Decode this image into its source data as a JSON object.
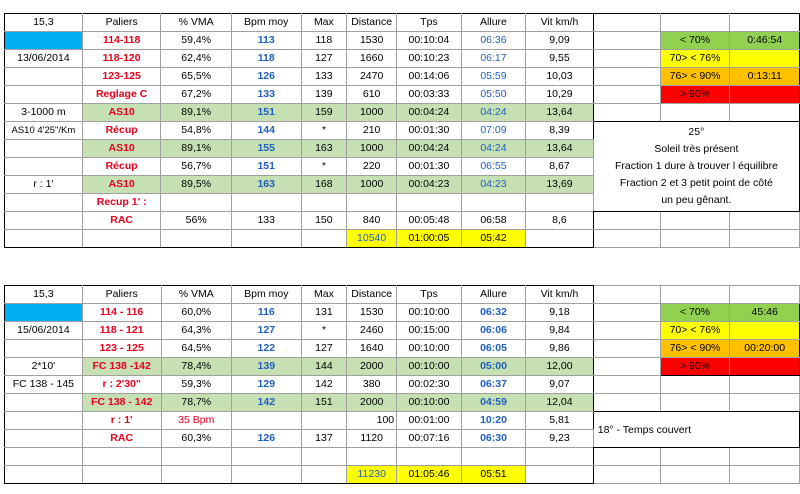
{
  "table1": {
    "corner": "15,3",
    "headers": [
      "Paliers",
      "% VMA",
      "Bpm moy",
      "Max",
      "Distance",
      "Tps",
      "Allure",
      "Vit km/h"
    ],
    "date": "13/06/2014",
    "side1": "3-1000 m",
    "side2": "AS10 4'25\"/Km",
    "side3": "r : 1'",
    "rows": [
      {
        "palier": "114-118",
        "vma": "59,4%",
        "bpm": "113",
        "max": "118",
        "dist": "1530",
        "tps": "00:10:04",
        "allure": "06:36",
        "vit": "9,09"
      },
      {
        "palier": "118-120",
        "vma": "62,4%",
        "bpm": "118",
        "max": "127",
        "dist": "1660",
        "tps": "00:10:23",
        "allure": "06:17",
        "vit": "9,55"
      },
      {
        "palier": "123-125",
        "vma": "65,5%",
        "bpm": "126",
        "max": "133",
        "dist": "2470",
        "tps": "00:14:06",
        "allure": "05:59",
        "vit": "10,03"
      },
      {
        "palier": "Reglage C",
        "vma": "67,2%",
        "bpm": "133",
        "max": "139",
        "dist": "610",
        "tps": "00:03:33",
        "allure": "05:50",
        "vit": "10,29"
      },
      {
        "palier": "AS10",
        "vma": "89,1%",
        "bpm": "151",
        "max": "159",
        "dist": "1000",
        "tps": "00:04:24",
        "allure": "04:24",
        "vit": "13,64"
      },
      {
        "palier": "Récup",
        "vma": "54,8%",
        "bpm": "144",
        "max": "*",
        "dist": "210",
        "tps": "00:01:30",
        "allure": "07:09",
        "vit": "8,39"
      },
      {
        "palier": "AS10",
        "vma": "89,1%",
        "bpm": "155",
        "max": "163",
        "dist": "1000",
        "tps": "00:04:24",
        "allure": "04:24",
        "vit": "13,64"
      },
      {
        "palier": "Récup",
        "vma": "56,7%",
        "bpm": "151",
        "max": "*",
        "dist": "220",
        "tps": "00:01:30",
        "allure": "06:55",
        "vit": "8,67"
      },
      {
        "palier": "AS10",
        "vma": "89,5%",
        "bpm": "163",
        "max": "168",
        "dist": "1000",
        "tps": "00:04:23",
        "allure": "04:23",
        "vit": "13,69"
      },
      {
        "palier": "Recup 1' :",
        "vma": "",
        "bpm": "",
        "max": "",
        "dist": "",
        "tps": "",
        "allure": "",
        "vit": ""
      },
      {
        "palier": "RAC",
        "vma": "56%",
        "bpm": "133",
        "max": "150",
        "dist": "840",
        "tps": "00:05:48",
        "allure": "06:58",
        "vit": "8,6"
      }
    ],
    "total": {
      "dist": "10540",
      "tps": "01:00:05",
      "allure": "05:42"
    },
    "legend": [
      {
        "label": "< 70%",
        "value": "0:46:54"
      },
      {
        "label": "70> < 76%",
        "value": ""
      },
      {
        "label": "76> < 90%",
        "value": "0:13:11"
      },
      {
        "label": "> 90%",
        "value": ""
      }
    ],
    "notes": [
      "25°",
      "Soleil très présent",
      "Fraction 1 dure à trouver l équilibre",
      "Fraction 2 et 3 petit point de côté",
      "un peu gênant."
    ]
  },
  "table2": {
    "corner": "15,3",
    "headers": [
      "Paliers",
      "% VMA",
      "Bpm moy",
      "Max",
      "Distance",
      "Tps",
      "Allure",
      "Vit km/h"
    ],
    "date": "15/06/2014",
    "side1": "2*10'",
    "side2": "FC 138 - 145",
    "rows": [
      {
        "palier": "114 - 116",
        "vma": "60,0%",
        "bpm": "116",
        "max": "131",
        "dist": "1530",
        "tps": "00:10:00",
        "allure": "06:32",
        "vit": "9,18"
      },
      {
        "palier": "118 - 121",
        "vma": "64,3%",
        "bpm": "127",
        "max": "*",
        "dist": "2460",
        "tps": "00:15:00",
        "allure": "06:06",
        "vit": "9,84"
      },
      {
        "palier": "123 - 125",
        "vma": "64,5%",
        "bpm": "122",
        "max": "127",
        "dist": "1640",
        "tps": "00:10:00",
        "allure": "06:05",
        "vit": "9,86"
      },
      {
        "palier": "FC 138 -142",
        "vma": "78,4%",
        "bpm": "139",
        "max": "144",
        "dist": "2000",
        "tps": "00:10:00",
        "allure": "05:00",
        "vit": "12,00"
      },
      {
        "palier": "r : 2'30\"",
        "vma": "59,3%",
        "bpm": "129",
        "max": "142",
        "dist": "380",
        "tps": "00:02:30",
        "allure": "06:37",
        "vit": "9,07"
      },
      {
        "palier": "FC 138 - 142",
        "vma": "78,7%",
        "bpm": "142",
        "max": "151",
        "dist": "2000",
        "tps": "00:10:00",
        "allure": "04:59",
        "vit": "12,04"
      },
      {
        "palier": "r : 1'",
        "vma": "35 Bpm",
        "bpm": "",
        "max": "",
        "dist": "100",
        "tps": "00:01:00",
        "allure": "10:20",
        "vit": "5,81"
      },
      {
        "palier": "RAC",
        "vma": "60,3%",
        "bpm": "126",
        "max": "137",
        "dist": "1120",
        "tps": "00:07:16",
        "allure": "06:30",
        "vit": "9,23"
      }
    ],
    "total": {
      "dist": "11230",
      "tps": "01:05:46",
      "allure": "05:51"
    },
    "legend": [
      {
        "label": "< 70%",
        "value": "45:46"
      },
      {
        "label": "70> < 76%",
        "value": ""
      },
      {
        "label": "76> < 90%",
        "value": "00:20:00"
      },
      {
        "label": "> 90%",
        "value": ""
      }
    ],
    "note": "18° - Temps couvert"
  }
}
